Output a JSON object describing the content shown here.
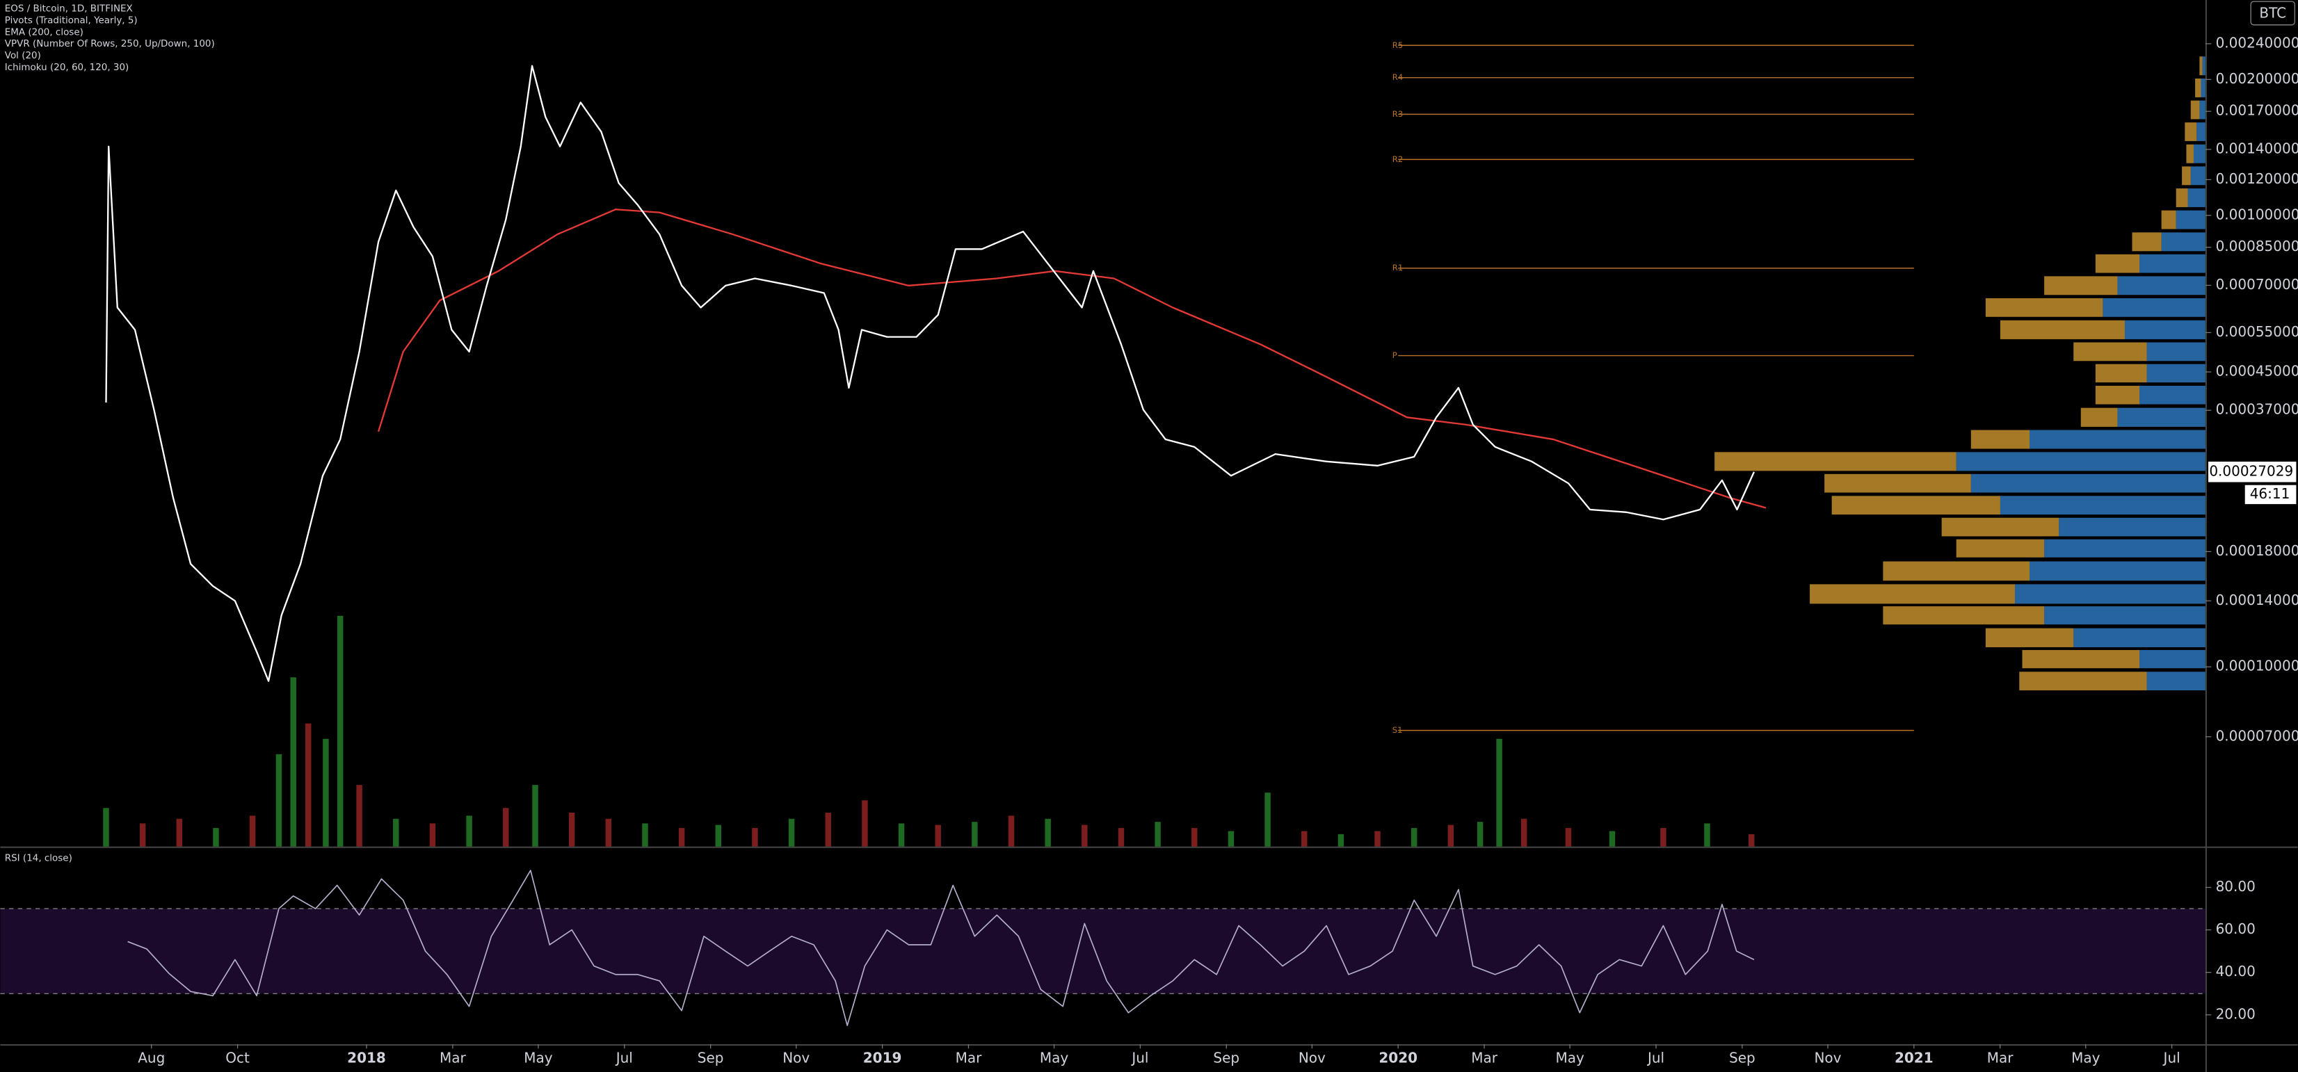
{
  "chart_data": {
    "type": "line",
    "title": "EOS / Bitcoin, 1D, BITFINEX",
    "indicators": [
      "Pivots (Traditional, Yearly, 5)",
      "EMA (200, close)",
      "VPVR (Number Of Rows, 250, Up/Down, 100)",
      "Vol (20)",
      "Ichimoku (20, 60, 120, 30)"
    ],
    "currency": "BTC",
    "log_scale": true,
    "grid": false,
    "xlim": [
      2017.29,
      2021.565
    ],
    "xticks": [
      {
        "value": 2017.583,
        "label": "Aug"
      },
      {
        "value": 2017.75,
        "label": "Oct"
      },
      2018,
      {
        "value": 2018.167,
        "label": "Mar"
      },
      {
        "value": 2018.333,
        "label": "May"
      },
      {
        "value": 2018.5,
        "label": "Jul"
      },
      {
        "value": 2018.667,
        "label": "Sep"
      },
      {
        "value": 2018.833,
        "label": "Nov"
      },
      2019,
      {
        "value": 2019.167,
        "label": "Mar"
      },
      {
        "value": 2019.333,
        "label": "May"
      },
      {
        "value": 2019.5,
        "label": "Jul"
      },
      {
        "value": 2019.667,
        "label": "Sep"
      },
      {
        "value": 2019.833,
        "label": "Nov"
      },
      2020,
      {
        "value": 2020.167,
        "label": "Mar"
      },
      {
        "value": 2020.333,
        "label": "May"
      },
      {
        "value": 2020.5,
        "label": "Jul"
      },
      {
        "value": 2020.667,
        "label": "Sep"
      },
      {
        "value": 2020.833,
        "label": "Nov"
      },
      2021,
      {
        "value": 2021.167,
        "label": "Mar"
      },
      {
        "value": 2021.333,
        "label": "May"
      },
      {
        "value": 2021.5,
        "label": "Jul"
      }
    ],
    "ylim": [
      4e-05,
      0.003
    ],
    "yticks": [
      {
        "value": 0.0024,
        "label": "0.00240000"
      },
      {
        "value": 0.002,
        "label": "0.00200000"
      },
      {
        "value": 0.0017,
        "label": "0.00170000"
      },
      {
        "value": 0.0014,
        "label": "0.00140000"
      },
      {
        "value": 0.0012,
        "label": "0.00120000"
      },
      {
        "value": 0.001,
        "label": "0.00100000"
      },
      {
        "value": 0.00085,
        "label": "0.00085000"
      },
      {
        "value": 0.0007,
        "label": "0.00070000"
      },
      {
        "value": 0.00055,
        "label": "0.00055000"
      },
      {
        "value": 0.00045,
        "label": "0.00045000"
      },
      {
        "value": 0.00037,
        "label": "0.00037000"
      },
      {
        "value": 0.00018,
        "label": "0.00018000"
      },
      {
        "value": 0.00014,
        "label": "0.00014000"
      },
      {
        "value": 0.0001,
        "label": "0.00010000"
      },
      {
        "value": 7e-05,
        "label": "0.00007000"
      }
    ],
    "last_price": 0.00027029,
    "countdown": "46:11",
    "series": [
      {
        "color": "#ffffff",
        "x": [
          2017.495,
          2017.5,
          2017.517,
          2017.551,
          2017.588,
          2017.625,
          2017.659,
          2017.702,
          2017.745,
          2017.787,
          2017.81,
          2017.835,
          2017.872,
          2017.915,
          2017.949,
          2017.986,
          2018.023,
          2018.057,
          2018.091,
          2018.128,
          2018.165,
          2018.199,
          2018.233,
          2018.27,
          2018.299,
          2018.321,
          2018.347,
          2018.375,
          2018.415,
          2018.455,
          2018.489,
          2018.526,
          2018.568,
          2018.611,
          2018.648,
          2018.696,
          2018.753,
          2018.824,
          2018.887,
          2018.915,
          2018.935,
          2018.96,
          2019.009,
          2019.066,
          2019.108,
          2019.142,
          2019.193,
          2019.273,
          2019.321,
          2019.387,
          2019.409,
          2019.463,
          2019.506,
          2019.549,
          2019.605,
          2019.676,
          2019.762,
          2019.861,
          2019.96,
          2020.031,
          2020.074,
          2020.117,
          2020.145,
          2020.188,
          2020.259,
          2020.33,
          2020.372,
          2020.443,
          2020.514,
          2020.585,
          2020.628,
          2020.657,
          2020.69
        ],
        "values": [
          0.000385,
          0.001421,
          0.000625,
          0.000558,
          0.000371,
          0.000237,
          0.000169,
          0.000151,
          0.00014,
          0.000108,
          9.3e-05,
          0.00013,
          0.000169,
          0.000265,
          0.000319,
          0.000499,
          0.000874,
          0.001136,
          0.000942,
          0.000811,
          0.000558,
          0.000499,
          0.000699,
          0.000978,
          0.001421,
          0.002144,
          0.001651,
          0.001421,
          0.001779,
          0.001532,
          0.001179,
          0.001054,
          0.000908,
          0.000699,
          0.000625,
          0.000699,
          0.000725,
          0.000699,
          0.000673,
          0.000558,
          0.000415,
          0.000558,
          0.000538,
          0.000538,
          0.000602,
          0.000842,
          0.000842,
          0.000921,
          0.000782,
          0.000625,
          0.000753,
          0.000518,
          0.000371,
          0.000319,
          0.000307,
          0.000265,
          0.000296,
          0.000285,
          0.000279,
          0.000292,
          0.000357,
          0.000415,
          0.000344,
          0.000307,
          0.000285,
          0.000255,
          0.000223,
          0.00022,
          0.000212,
          0.000223,
          0.000259,
          0.000223,
          0.00027029
        ]
      },
      {
        "color": "#e53935",
        "x": [
          2018.023,
          2018.071,
          2018.142,
          2018.256,
          2018.37,
          2018.483,
          2018.568,
          2018.71,
          2018.881,
          2019.051,
          2019.222,
          2019.335,
          2019.449,
          2019.563,
          2019.733,
          2019.847,
          2020.017,
          2020.131,
          2020.301,
          2020.472,
          2020.642,
          2020.713
        ],
        "values": [
          0.000332,
          0.000499,
          0.000648,
          0.000753,
          0.000908,
          0.001031,
          0.001015,
          0.000908,
          0.000782,
          0.000699,
          0.000725,
          0.000753,
          0.000725,
          0.000625,
          0.000518,
          0.000447,
          0.000357,
          0.000344,
          0.000319,
          0.000275,
          0.000237,
          0.000225
        ]
      }
    ],
    "pivots": {
      "color": "#b8732a",
      "x": [
        2020,
        2021
      ],
      "levels": [
        {
          "name": "R5",
          "value": 0.00238
        },
        {
          "name": "R4",
          "value": 0.002019
        },
        {
          "name": "R3",
          "value": 0.001675
        },
        {
          "name": "R2",
          "value": 0.00133
        },
        {
          "name": "R1",
          "value": 0.000764
        },
        {
          "name": "P",
          "value": 0.000489
        },
        {
          "name": "S1",
          "value": 7.23e-05
        }
      ]
    },
    "vpvr": {
      "up_color": "#2a6fb0",
      "down_color": "#b8862a",
      "prices": [
        9.3e-05,
        0.000104,
        0.000116,
        0.00013,
        0.000145,
        0.000163,
        0.000183,
        0.000204,
        0.000228,
        0.000255,
        0.000285,
        0.000319,
        0.000357,
        0.0004,
        0.000447,
        0.000499,
        0.000558,
        0.000625,
        0.000699,
        0.000782,
        0.000874,
        0.000978,
        0.001094,
        0.001224,
        0.001369,
        0.001532,
        0.001713,
        0.001916,
        0.002144
      ],
      "up": [
        40,
        45,
        90,
        110,
        130,
        120,
        110,
        100,
        140,
        160,
        170,
        120,
        60,
        45,
        40,
        40,
        55,
        70,
        60,
        45,
        30,
        20,
        12,
        10,
        8,
        6,
        4,
        3,
        2
      ],
      "down": [
        87,
        80,
        60,
        110,
        140,
        100,
        60,
        80,
        115,
        100,
        165,
        40,
        25,
        30,
        35,
        50,
        85,
        80,
        50,
        30,
        20,
        10,
        8,
        6,
        5,
        8,
        6,
        4,
        2
      ]
    },
    "volume": {
      "up_color": "#1e6a22",
      "down_color": "#7d1e1e",
      "ylim": [
        0,
        160
      ],
      "x": [
        2017.495,
        2017.566,
        2017.637,
        2017.708,
        2017.779,
        2017.83,
        2017.858,
        2017.887,
        2017.921,
        2017.949,
        2017.986,
        2018.057,
        2018.128,
        2018.199,
        2018.27,
        2018.327,
        2018.398,
        2018.469,
        2018.54,
        2018.611,
        2018.682,
        2018.753,
        2018.824,
        2018.895,
        2018.966,
        2019.037,
        2019.108,
        2019.179,
        2019.25,
        2019.321,
        2019.392,
        2019.463,
        2019.534,
        2019.605,
        2019.676,
        2019.747,
        2019.818,
        2019.889,
        2019.96,
        2020.031,
        2020.102,
        2020.159,
        2020.196,
        2020.244,
        2020.33,
        2020.415,
        2020.514,
        2020.599,
        2020.685
      ],
      "values": [
        25,
        15,
        18,
        12,
        20,
        60,
        110,
        80,
        70,
        150,
        40,
        18,
        15,
        20,
        25,
        40,
        22,
        18,
        15,
        12,
        14,
        12,
        18,
        22,
        30,
        15,
        14,
        16,
        20,
        18,
        14,
        12,
        16,
        12,
        10,
        35,
        10,
        8,
        10,
        12,
        14,
        16,
        70,
        18,
        12,
        10,
        12,
        15,
        8
      ],
      "up": [
        true,
        false,
        false,
        true,
        false,
        true,
        true,
        false,
        true,
        true,
        false,
        true,
        false,
        true,
        false,
        true,
        false,
        false,
        true,
        false,
        true,
        false,
        true,
        false,
        false,
        true,
        false,
        true,
        false,
        true,
        false,
        false,
        true,
        false,
        true,
        true,
        false,
        true,
        false,
        true,
        false,
        true,
        true,
        false,
        false,
        true,
        false,
        true,
        false
      ]
    },
    "rsi": {
      "title": "RSI (14, close)",
      "color": "#b5aecb",
      "band": [
        30,
        70
      ],
      "ylim": [
        6.2,
        97.9
      ],
      "yticks": [
        {
          "value": 80,
          "label": "80.00"
        },
        {
          "value": 60,
          "label": "60.00"
        },
        {
          "value": 40,
          "label": "40.00"
        },
        {
          "value": 20,
          "label": "20.00"
        }
      ],
      "x": [
        2017.537,
        2017.574,
        2017.617,
        2017.659,
        2017.702,
        2017.745,
        2017.787,
        2017.83,
        2017.858,
        2017.901,
        2017.943,
        2017.986,
        2018.029,
        2018.071,
        2018.114,
        2018.156,
        2018.199,
        2018.242,
        2018.284,
        2018.318,
        2018.355,
        2018.398,
        2018.441,
        2018.483,
        2018.526,
        2018.568,
        2018.611,
        2018.654,
        2018.696,
        2018.739,
        2018.781,
        2018.824,
        2018.867,
        2018.909,
        2018.932,
        2018.966,
        2019.009,
        2019.051,
        2019.094,
        2019.137,
        2019.179,
        2019.222,
        2019.264,
        2019.307,
        2019.35,
        2019.392,
        2019.435,
        2019.477,
        2019.52,
        2019.563,
        2019.605,
        2019.648,
        2019.691,
        2019.733,
        2019.776,
        2019.818,
        2019.861,
        2019.904,
        2019.946,
        2019.989,
        2020.031,
        2020.074,
        2020.117,
        2020.145,
        2020.188,
        2020.23,
        2020.273,
        2020.316,
        2020.352,
        2020.387,
        2020.429,
        2020.472,
        2020.514,
        2020.557,
        2020.6,
        2020.628,
        2020.656,
        2020.69
      ],
      "values": [
        54.5,
        51,
        39.5,
        31,
        29,
        46,
        29,
        70,
        76,
        70,
        81,
        67,
        84,
        74,
        50,
        39,
        24,
        57,
        74,
        88,
        53,
        60,
        43,
        39,
        39,
        36,
        22,
        57,
        50,
        43,
        50,
        57,
        53,
        36,
        15,
        43,
        60,
        53,
        53,
        81,
        57,
        67,
        57,
        32,
        24,
        63,
        36,
        21,
        29,
        36,
        46,
        39,
        62,
        53,
        43,
        50,
        62,
        39,
        43,
        50,
        74,
        57,
        79,
        43,
        39,
        43,
        53,
        43,
        21,
        39,
        46,
        43,
        62,
        39,
        50,
        72,
        50,
        46
      ]
    }
  }
}
